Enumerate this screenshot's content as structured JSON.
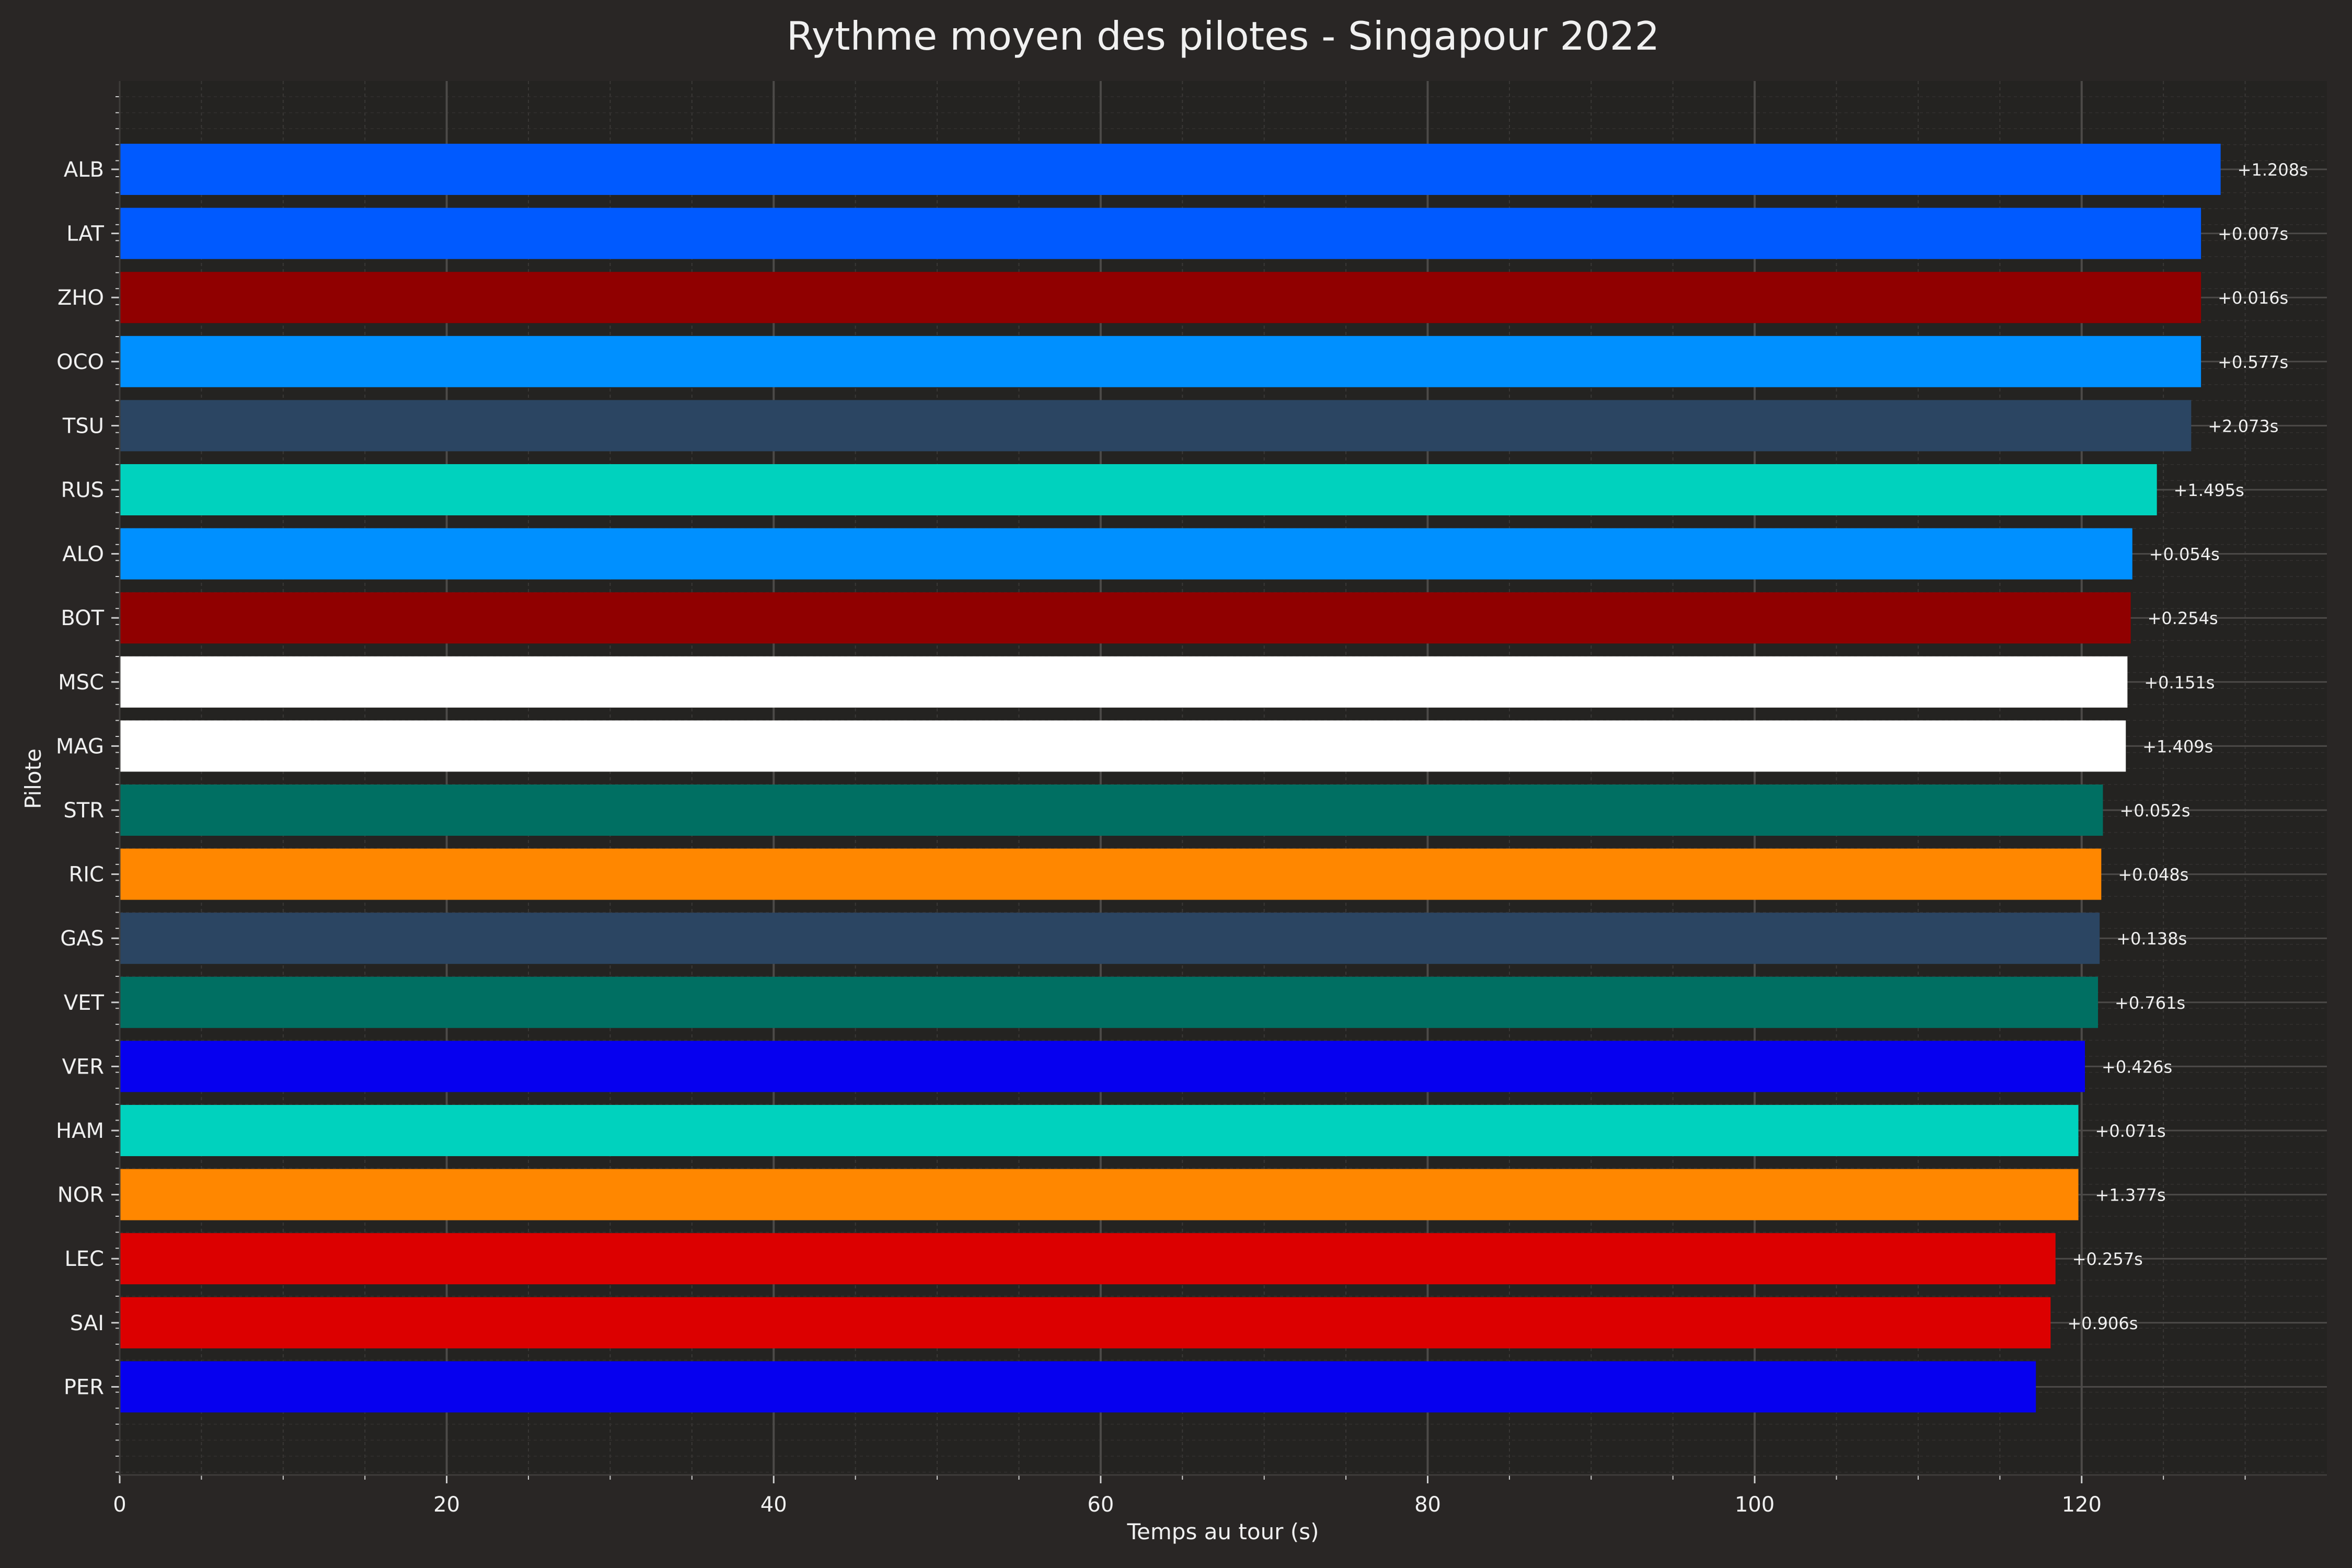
{
  "chart_data": {
    "type": "bar",
    "orientation": "horizontal",
    "title": "Rythme moyen des pilotes - Singapour 2022",
    "xlabel": "Temps au tour (s)",
    "ylabel": "Pilote",
    "xlim": [
      0,
      135
    ],
    "xticks": [
      0,
      20,
      40,
      60,
      80,
      100,
      120
    ],
    "grid": true,
    "background": "#292625",
    "plot_background": "#242321",
    "categories": [
      "ALB",
      "LAT",
      "ZHO",
      "OCO",
      "TSU",
      "RUS",
      "ALO",
      "BOT",
      "MSC",
      "MAG",
      "STR",
      "RIC",
      "GAS",
      "VET",
      "VER",
      "HAM",
      "NOR",
      "LEC",
      "SAI",
      "PER"
    ],
    "values": [
      128.5,
      127.3,
      127.3,
      127.3,
      126.7,
      124.6,
      123.1,
      123.0,
      122.8,
      122.7,
      121.3,
      121.2,
      121.1,
      121.0,
      120.2,
      119.8,
      119.8,
      118.4,
      118.1,
      117.2
    ],
    "gaps": [
      "+1.208s",
      "+0.007s",
      "+0.016s",
      "+0.577s",
      "+2.073s",
      "+1.495s",
      "+0.054s",
      "+0.254s",
      "+0.151s",
      "+1.409s",
      "+0.052s",
      "+0.048s",
      "+0.138s",
      "+0.761s",
      "+0.426s",
      "+0.071s",
      "+1.377s",
      "+0.257s",
      "+0.906s",
      ""
    ],
    "colors": [
      "#005aff",
      "#005aff",
      "#900000",
      "#0090ff",
      "#2b4562",
      "#00d2be",
      "#0090ff",
      "#900000",
      "#ffffff",
      "#ffffff",
      "#006f62",
      "#ff8700",
      "#2b4562",
      "#006f62",
      "#0600ef",
      "#00d2be",
      "#ff8700",
      "#dc0000",
      "#dc0000",
      "#0600ef"
    ]
  }
}
